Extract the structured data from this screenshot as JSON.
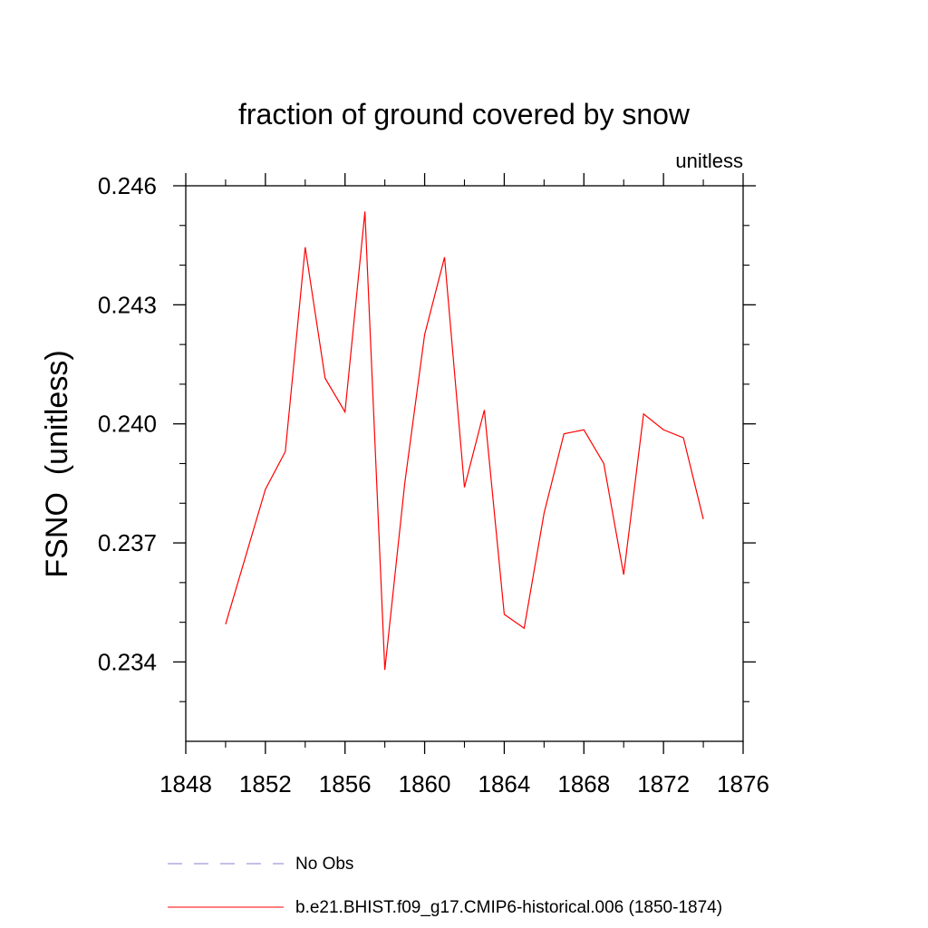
{
  "chart_data": {
    "type": "line",
    "title": "fraction of ground covered by snow",
    "units_label": "unitless",
    "ylabel": "FSNO  (unitless)",
    "xlabel": "",
    "xlim": [
      1848,
      1876
    ],
    "ylim": [
      0.232,
      0.246
    ],
    "x_ticks": [
      1848,
      1852,
      1856,
      1860,
      1864,
      1868,
      1872,
      1876
    ],
    "x_tick_labels": [
      "1848",
      "1852",
      "1856",
      "1860",
      "1864",
      "1868",
      "1872",
      "1876"
    ],
    "y_ticks": [
      0.234,
      0.237,
      0.24,
      0.243,
      0.246
    ],
    "y_tick_labels": [
      "0.234",
      "0.237",
      "0.240",
      "0.243",
      "0.246"
    ],
    "y_minor_step": 0.001,
    "x_minor_step": 2,
    "series": [
      {
        "name": "b.e21.BHIST.f09_g17.CMIP6-historical.006 (1850-1874)",
        "color": "#ff0000",
        "style": "solid",
        "x": [
          1850,
          1851,
          1852,
          1853,
          1854,
          1855,
          1856,
          1857,
          1858,
          1859,
          1860,
          1861,
          1862,
          1863,
          1864,
          1865,
          1866,
          1867,
          1868,
          1869,
          1870,
          1871,
          1872,
          1873,
          1874
        ],
        "values": [
          0.23495,
          0.23665,
          0.23835,
          0.2393,
          0.24445,
          0.24115,
          0.2403,
          0.24535,
          0.2338,
          0.2385,
          0.24225,
          0.2442,
          0.2384,
          0.24035,
          0.2352,
          0.23485,
          0.23775,
          0.23975,
          0.23985,
          0.239,
          0.2362,
          0.24025,
          0.23985,
          0.23965,
          0.2376
        ]
      }
    ],
    "legend": [
      {
        "label": "No Obs",
        "color": "#8a7fd0",
        "style": "dashed"
      },
      {
        "label": "b.e21.BHIST.f09_g17.CMIP6-historical.006 (1850-1874)",
        "color": "#ff0000",
        "style": "solid"
      }
    ]
  }
}
